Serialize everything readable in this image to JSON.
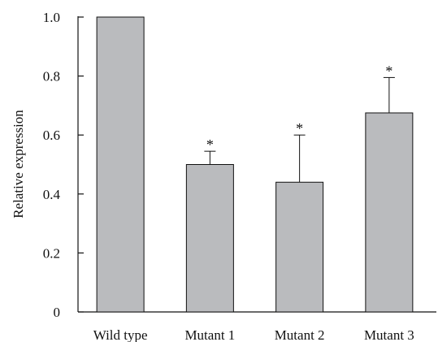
{
  "chart_data": {
    "type": "bar",
    "ylabel": "Relative expression",
    "xlabel": "",
    "ylim": [
      0,
      1.0
    ],
    "yticks": [
      "0",
      "0.2",
      "0.4",
      "0.6",
      "0.8",
      "1.0"
    ],
    "yticks_values": [
      0,
      0.2,
      0.4,
      0.6,
      0.8,
      1.0
    ],
    "categories": [
      "Wild type",
      "Mutant 1",
      "Mutant 2",
      "Mutant 3"
    ],
    "values": [
      1.0,
      0.5,
      0.44,
      0.675
    ],
    "error_upper": [
      0,
      0.045,
      0.16,
      0.12
    ],
    "significance": [
      "",
      "*",
      "*",
      "*"
    ],
    "bar_color": "#babbbe",
    "grid": false
  }
}
